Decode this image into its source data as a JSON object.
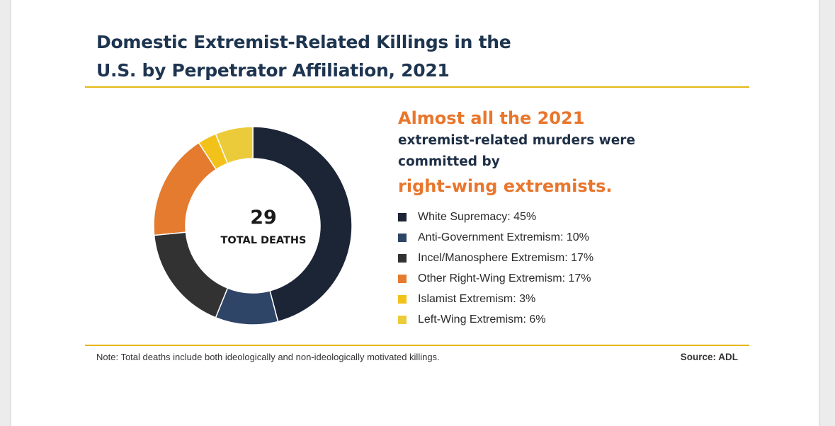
{
  "title_line1": "Domestic Extremist-Related Killings in the",
  "title_line2": "U.S. by Perpetrator Affiliation, 2021",
  "headline": {
    "line1": "Almost all the 2021",
    "line2": "extremist-related murders were",
    "line3": "committed by",
    "line4": "right-wing extremists."
  },
  "note": "Note: Total deaths include both ideologically and non-ideologically motivated killings.",
  "source": "Source: ADL",
  "chart_data": {
    "type": "pie",
    "subtype": "donut",
    "title": "Domestic Extremist-Related Killings in the U.S. by Perpetrator Affiliation, 2021",
    "center_value": "29",
    "center_label": "TOTAL DEATHS",
    "unit": "%",
    "legend_position": "right",
    "categories": [
      "White Supremacy",
      "Anti-Government Extremism",
      "Incel/Manosphere Extremism",
      "Other Right-Wing Extremism",
      "Islamist Extremism",
      "Left-Wing Extremism"
    ],
    "values": [
      45,
      10,
      17,
      17,
      3,
      6
    ],
    "legend_labels": [
      "White Supremacy: 45%",
      "Anti-Government Extremism: 10%",
      "Incel/Manosphere Extremism: 17%",
      "Other Right-Wing Extremism: 17%",
      "Islamist Extremism: 3%",
      "Left-Wing Extremism: 6%"
    ],
    "colors": [
      "#1c2536",
      "#2f4567",
      "#333232",
      "#e57b2f",
      "#f2c21b",
      "#eccb3a"
    ]
  }
}
